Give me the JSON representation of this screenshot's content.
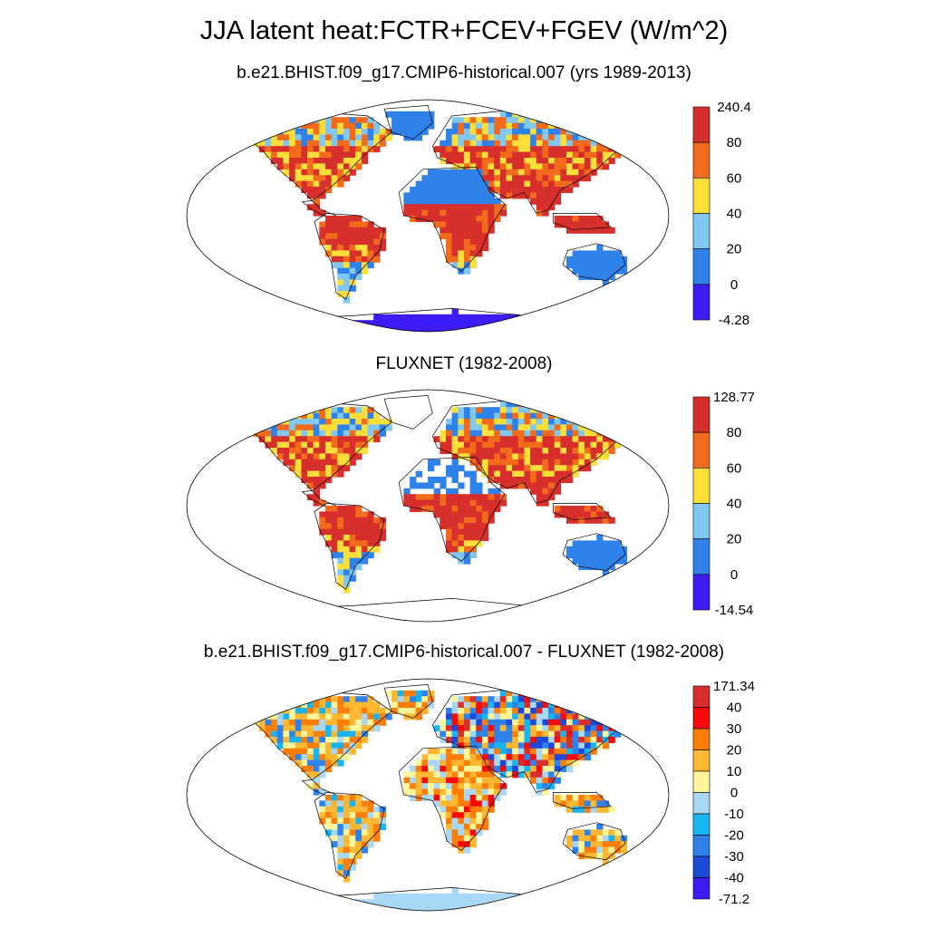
{
  "title": "JJA latent heat:FCTR+FCEV+FGEV (W/m^2)",
  "panels": [
    {
      "subtitle": "b.e21.BHIST.f09_g17.CMIP6-historical.007 (yrs 1989-2013)",
      "colorbar": {
        "labels": [
          "240.4",
          "80",
          "60",
          "40",
          "20",
          "0",
          "-4.28"
        ],
        "colors": [
          "#d7302c",
          "#f26a1c",
          "#fcdf3a",
          "#80c8ef",
          "#2f82ea",
          "#3d1cf5"
        ]
      }
    },
    {
      "subtitle": "FLUXNET (1982-2008)",
      "colorbar": {
        "labels": [
          "128.77",
          "80",
          "60",
          "40",
          "20",
          "0",
          "-14.54"
        ],
        "colors": [
          "#d7302c",
          "#f26a1c",
          "#fcdf3a",
          "#80c8ef",
          "#2f82ea",
          "#3d1cf5"
        ]
      }
    },
    {
      "subtitle": "b.e21.BHIST.f09_g17.CMIP6-historical.007 - FLUXNET (1982-2008)",
      "colorbar": {
        "labels": [
          "171.34",
          "40",
          "30",
          "20",
          "10",
          "0",
          "-10",
          "-20",
          "-30",
          "-40",
          "-71.2"
        ],
        "colors": [
          "#d7302c",
          "#f80a0a",
          "#fc7e0a",
          "#fcb833",
          "#fdf59a",
          "#a9d8f5",
          "#19b4f2",
          "#2f82ea",
          "#1d49d6",
          "#3d1cf5"
        ]
      }
    }
  ]
}
